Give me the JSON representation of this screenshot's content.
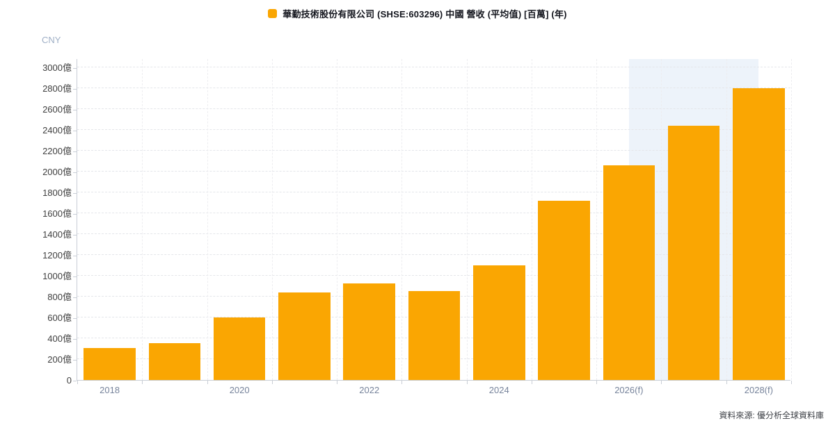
{
  "legend": {
    "label": "華勤技術股份有限公司 (SHSE:603296) 中國 營收 (平均值) [百萬] (年)",
    "marker_color": "#faa602"
  },
  "y_axis_unit": "CNY",
  "source_note": "資料來源: 優分析全球資料庫",
  "colors": {
    "bar": "#faa602",
    "highlight_band": "#edf3fa",
    "axis_line": "#c9ced6",
    "grid_line": "#e4e6ea",
    "y_label_text": "#404040",
    "x_label_text": "#76839b",
    "unit_text": "#9fafc6",
    "legend_text": "#13151d",
    "source_text": "#3d4046"
  },
  "chart_data": {
    "type": "bar",
    "title": "華勤技術股份有限公司 (SHSE:603296) 中國 營收 (平均值) [百萬] (年)",
    "unit": "億 (CNY)",
    "categories": [
      "2018",
      "2019",
      "2020",
      "2021",
      "2022",
      "2023",
      "2024",
      "2025",
      "2026(f)",
      "2027(f)",
      "2028(f)"
    ],
    "values": [
      309,
      353,
      598,
      838,
      926,
      853,
      1100,
      1722,
      2060,
      2437,
      2800
    ],
    "x_tick_labels": [
      "2018",
      "2020",
      "2022",
      "2024",
      "2026(f)",
      "2028(f)"
    ],
    "x_tick_every": 2,
    "xlabel": "",
    "ylabel": "CNY",
    "ylim": [
      0,
      3000
    ],
    "ytick_step": 200,
    "ytick_suffix": "億",
    "grid": true,
    "legend_position": "top-center",
    "bar_color": "#faa602",
    "highlight_band": {
      "center_category": "2027(f)",
      "slots_wide": 2,
      "color": "#edf3fa"
    }
  }
}
